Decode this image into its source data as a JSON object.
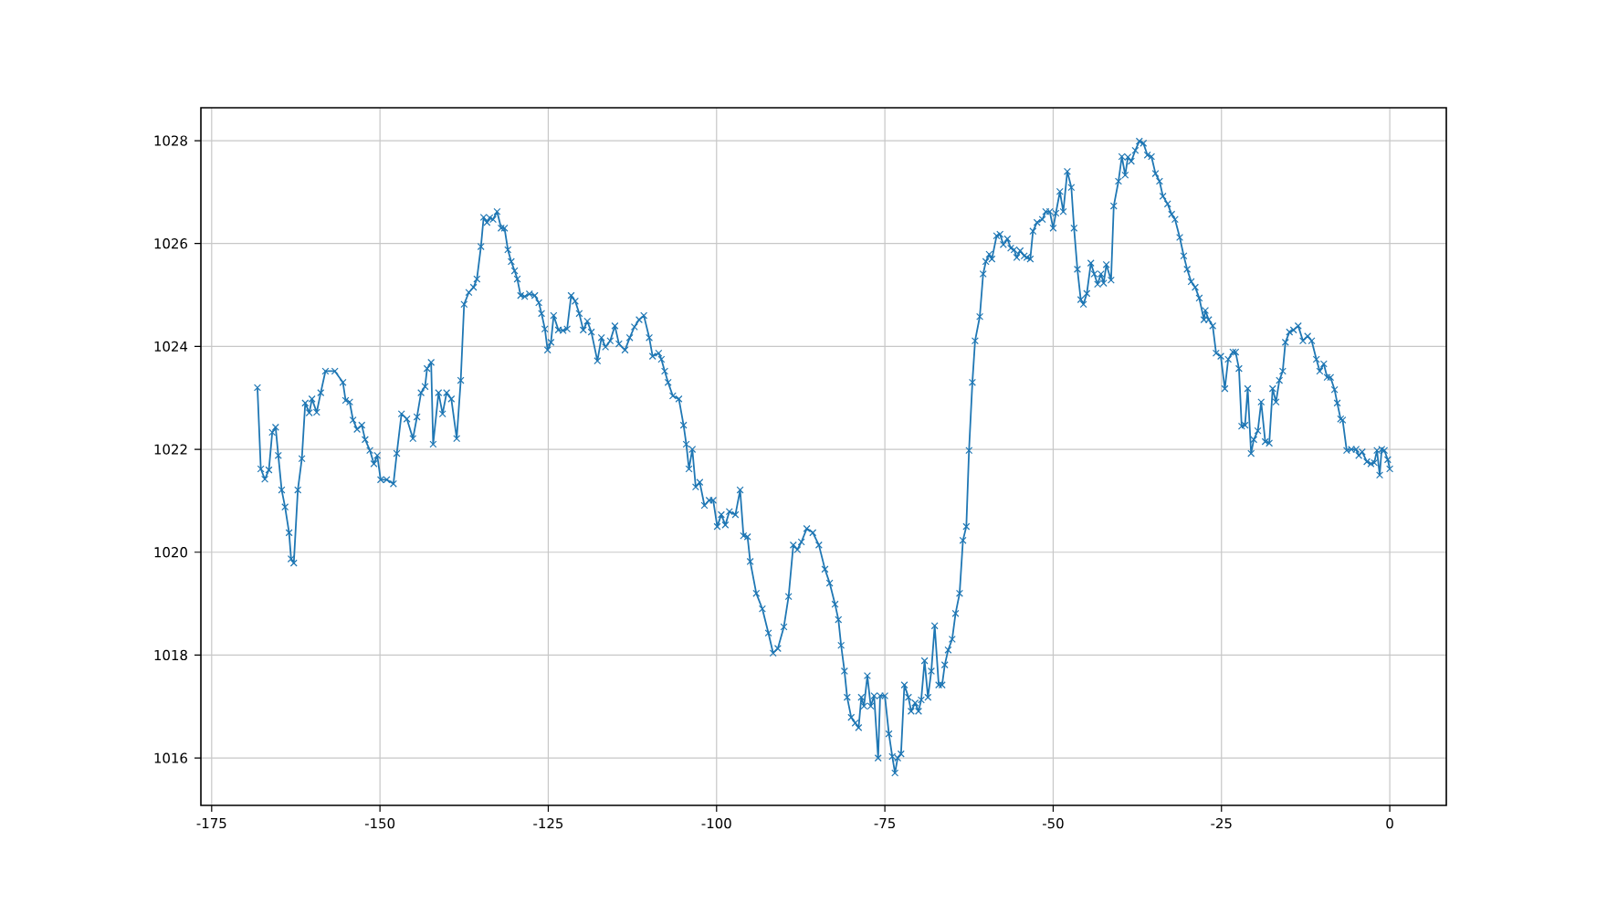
{
  "chart_data": {
    "type": "line",
    "xlim": [
      -176.6,
      8.4
    ],
    "ylim": [
      1015.08,
      1028.64
    ],
    "xticks": [
      -175,
      -150,
      -125,
      -100,
      -75,
      -50,
      -25,
      0
    ],
    "yticks": [
      1016,
      1018,
      1020,
      1022,
      1024,
      1026,
      1028
    ],
    "grid": true,
    "marker": "cross",
    "line_style": "solid",
    "series": [
      {
        "color": "#1f77b4",
        "x": [
          -168.2,
          -167.7,
          -167.1,
          -166.5,
          -166.0,
          -165.5,
          -165.1,
          -164.6,
          -164.1,
          -163.5,
          -163.2,
          -162.8,
          -162.2,
          -161.6,
          -161.1,
          -160.5,
          -160.1,
          -159.4,
          -158.8,
          -158.1,
          -156.7,
          -155.5,
          -155.1,
          -154.5,
          -154.0,
          -153.4,
          -152.7,
          -152.2,
          -151.5,
          -150.9,
          -150.4,
          -149.9,
          -149.0,
          -148.0,
          -147.5,
          -146.8,
          -146.0,
          -145.1,
          -144.5,
          -143.9,
          -143.3,
          -143.0,
          -142.4,
          -142.1,
          -141.3,
          -140.7,
          -140.1,
          -139.4,
          -138.6,
          -138.0,
          -137.5,
          -136.8,
          -136.1,
          -135.6,
          -135.0,
          -134.6,
          -134.1,
          -133.7,
          -133.2,
          -132.6,
          -132.0,
          -131.5,
          -131.0,
          -130.5,
          -130.0,
          -129.6,
          -129.1,
          -128.5,
          -127.8,
          -127.0,
          -126.4,
          -126.0,
          -125.5,
          -125.1,
          -124.6,
          -124.2,
          -123.5,
          -122.8,
          -122.2,
          -121.6,
          -121.0,
          -120.4,
          -119.8,
          -119.2,
          -118.6,
          -117.7,
          -117.1,
          -116.5,
          -115.8,
          -115.1,
          -114.5,
          -113.6,
          -112.9,
          -112.2,
          -111.5,
          -110.8,
          -110.0,
          -109.5,
          -108.6,
          -108.2,
          -107.7,
          -107.2,
          -106.5,
          -105.6,
          -104.9,
          -104.5,
          -104.1,
          -103.6,
          -103.1,
          -102.5,
          -101.8,
          -101.1,
          -100.5,
          -99.9,
          -99.3,
          -98.7,
          -98.1,
          -97.2,
          -96.5,
          -96.0,
          -95.4,
          -95.0,
          -94.1,
          -93.2,
          -92.3,
          -91.6,
          -90.9,
          -90.0,
          -89.3,
          -88.6,
          -88.0,
          -87.4,
          -86.6,
          -85.7,
          -84.8,
          -83.9,
          -83.2,
          -82.4,
          -81.9,
          -81.5,
          -81.0,
          -80.6,
          -80.0,
          -79.4,
          -78.9,
          -78.5,
          -78.1,
          -77.6,
          -77.1,
          -76.6,
          -76.0,
          -75.7,
          -75.0,
          -74.4,
          -73.9,
          -73.5,
          -73.1,
          -72.6,
          -72.1,
          -71.5,
          -71.1,
          -70.5,
          -70.0,
          -69.6,
          -69.1,
          -68.6,
          -68.1,
          -67.6,
          -67.0,
          -66.5,
          -66.1,
          -65.6,
          -65.0,
          -64.5,
          -63.9,
          -63.4,
          -62.9,
          -62.5,
          -62.0,
          -61.6,
          -60.9,
          -60.4,
          -60.0,
          -59.5,
          -59.1,
          -58.4,
          -57.9,
          -57.4,
          -56.8,
          -56.3,
          -55.8,
          -55.4,
          -54.9,
          -54.3,
          -53.9,
          -53.4,
          -53.0,
          -52.4,
          -51.6,
          -51.1,
          -50.5,
          -50.0,
          -49.6,
          -49.0,
          -48.5,
          -47.9,
          -47.3,
          -46.9,
          -46.4,
          -45.9,
          -45.5,
          -45.0,
          -44.4,
          -43.9,
          -43.4,
          -42.9,
          -42.5,
          -42.1,
          -41.4,
          -41.0,
          -40.3,
          -39.8,
          -39.3,
          -38.9,
          -38.4,
          -37.8,
          -37.2,
          -36.6,
          -36.0,
          -35.4,
          -34.8,
          -34.2,
          -33.7,
          -33.0,
          -32.4,
          -31.9,
          -31.2,
          -30.6,
          -30.1,
          -29.5,
          -28.9,
          -28.3,
          -27.6,
          -27.4,
          -26.9,
          -26.3,
          -25.8,
          -25.1,
          -24.5,
          -24.0,
          -23.3,
          -22.9,
          -22.4,
          -22.0,
          -21.5,
          -21.1,
          -20.6,
          -20.2,
          -19.6,
          -19.1,
          -18.5,
          -17.9,
          -17.4,
          -16.9,
          -16.4,
          -15.9,
          -15.5,
          -14.9,
          -14.3,
          -13.6,
          -12.9,
          -12.2,
          -11.6,
          -10.9,
          -10.4,
          -9.8,
          -9.3,
          -8.8,
          -8.2,
          -7.8,
          -7.3,
          -7.0,
          -6.4,
          -5.7,
          -5.0,
          -4.6,
          -4.1,
          -3.4,
          -2.8,
          -2.3,
          -1.9,
          -1.5,
          -1.2,
          -0.8,
          -0.3,
          0.0
        ],
        "values": [
          1023.2,
          1021.62,
          1021.42,
          1021.6,
          1022.33,
          1022.43,
          1021.88,
          1021.21,
          1020.88,
          1020.38,
          1019.87,
          1019.79,
          1021.21,
          1021.82,
          1022.9,
          1022.71,
          1022.98,
          1022.72,
          1023.1,
          1023.52,
          1023.52,
          1023.3,
          1022.95,
          1022.92,
          1022.57,
          1022.39,
          1022.47,
          1022.19,
          1021.98,
          1021.72,
          1021.88,
          1021.41,
          1021.41,
          1021.33,
          1021.92,
          1022.69,
          1022.59,
          1022.21,
          1022.63,
          1023.1,
          1023.22,
          1023.57,
          1023.69,
          1022.1,
          1023.1,
          1022.69,
          1023.1,
          1022.98,
          1022.21,
          1023.34,
          1024.82,
          1025.05,
          1025.15,
          1025.31,
          1025.94,
          1026.51,
          1026.41,
          1026.5,
          1026.47,
          1026.62,
          1026.3,
          1026.3,
          1025.88,
          1025.65,
          1025.47,
          1025.31,
          1024.99,
          1024.97,
          1025.02,
          1024.99,
          1024.85,
          1024.64,
          1024.34,
          1023.93,
          1024.08,
          1024.6,
          1024.32,
          1024.31,
          1024.34,
          1024.99,
          1024.88,
          1024.64,
          1024.32,
          1024.49,
          1024.28,
          1023.72,
          1024.17,
          1023.99,
          1024.11,
          1024.4,
          1024.05,
          1023.93,
          1024.17,
          1024.38,
          1024.52,
          1024.6,
          1024.17,
          1023.81,
          1023.87,
          1023.75,
          1023.52,
          1023.3,
          1023.04,
          1022.98,
          1022.47,
          1022.1,
          1021.62,
          1022.0,
          1021.27,
          1021.36,
          1020.91,
          1021.01,
          1021.01,
          1020.5,
          1020.73,
          1020.53,
          1020.79,
          1020.73,
          1021.21,
          1020.32,
          1020.3,
          1019.82,
          1019.2,
          1018.9,
          1018.43,
          1018.04,
          1018.13,
          1018.55,
          1019.14,
          1020.14,
          1020.05,
          1020.2,
          1020.46,
          1020.38,
          1020.14,
          1019.67,
          1019.4,
          1018.99,
          1018.69,
          1018.19,
          1017.69,
          1017.18,
          1016.79,
          1016.68,
          1016.59,
          1017.18,
          1017.01,
          1017.6,
          1017.01,
          1017.21,
          1016.0,
          1017.21,
          1017.21,
          1016.47,
          1016.03,
          1015.71,
          1016.0,
          1016.08,
          1017.42,
          1017.18,
          1016.91,
          1017.07,
          1016.91,
          1017.13,
          1017.89,
          1017.18,
          1017.69,
          1018.57,
          1017.42,
          1017.42,
          1017.81,
          1018.1,
          1018.31,
          1018.81,
          1019.2,
          1020.23,
          1020.5,
          1021.98,
          1023.3,
          1024.11,
          1024.58,
          1025.41,
          1025.65,
          1025.79,
          1025.7,
          1026.15,
          1026.18,
          1025.98,
          1026.09,
          1025.91,
          1025.88,
          1025.73,
          1025.86,
          1025.76,
          1025.73,
          1025.7,
          1026.24,
          1026.41,
          1026.47,
          1026.62,
          1026.62,
          1026.3,
          1026.59,
          1027.01,
          1026.62,
          1027.4,
          1027.09,
          1026.3,
          1025.5,
          1024.91,
          1024.82,
          1025.03,
          1025.62,
          1025.41,
          1025.21,
          1025.41,
          1025.23,
          1025.59,
          1025.29,
          1026.73,
          1027.21,
          1027.69,
          1027.33,
          1027.68,
          1027.6,
          1027.81,
          1027.99,
          1027.95,
          1027.72,
          1027.69,
          1027.36,
          1027.21,
          1026.92,
          1026.77,
          1026.57,
          1026.47,
          1026.12,
          1025.76,
          1025.5,
          1025.26,
          1025.15,
          1024.94,
          1024.52,
          1024.7,
          1024.52,
          1024.4,
          1023.87,
          1023.81,
          1023.18,
          1023.75,
          1023.89,
          1023.89,
          1023.57,
          1022.45,
          1022.47,
          1023.18,
          1021.92,
          1022.19,
          1022.36,
          1022.92,
          1022.15,
          1022.12,
          1023.18,
          1022.92,
          1023.34,
          1023.52,
          1024.08,
          1024.28,
          1024.32,
          1024.4,
          1024.11,
          1024.2,
          1024.11,
          1023.75,
          1023.52,
          1023.66,
          1023.4,
          1023.4,
          1023.16,
          1022.9,
          1022.59,
          1022.57,
          1021.98,
          1022.0,
          1022.0,
          1021.88,
          1021.95,
          1021.76,
          1021.72,
          1021.74,
          1021.98,
          1021.5,
          1022.0,
          1021.98,
          1021.8,
          1021.62
        ]
      }
    ]
  }
}
